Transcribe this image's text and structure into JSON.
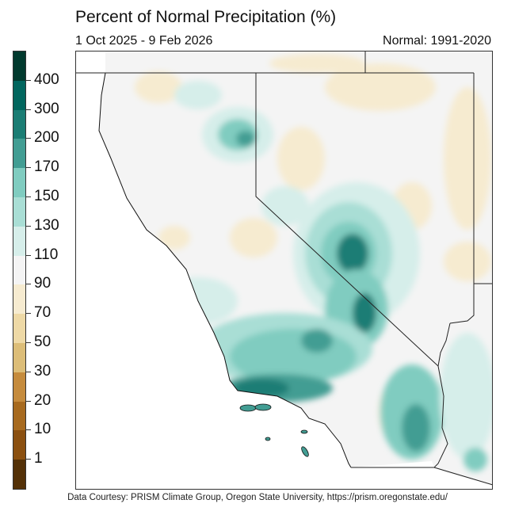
{
  "title": "Percent of Normal Precipitation (%)",
  "date_range": "1 Oct 2025 - 9 Feb 2026",
  "normal_period": "Normal: 1991-2020",
  "footer": "Data Courtesy: PRISM Climate Group, Oregon State University, https://prism.oregonstate.edu/",
  "legend": {
    "labels": [
      "400",
      "300",
      "200",
      "170",
      "150",
      "130",
      "110",
      "90",
      "70",
      "50",
      "30",
      "20",
      "10",
      "1"
    ],
    "colors": [
      "#013a2e",
      "#01665e",
      "#1b7d74",
      "#429d93",
      "#80ccc0",
      "#a9ded5",
      "#d6eeea",
      "#f4f4f4",
      "#f6ebd0",
      "#eed9a6",
      "#dcbd78",
      "#c58b3d",
      "#a76a1f",
      "#8b5010",
      "#543107"
    ]
  }
}
